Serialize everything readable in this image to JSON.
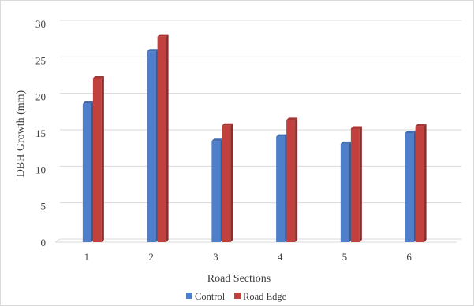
{
  "chart_data": {
    "type": "bar",
    "categories": [
      "1",
      "2",
      "3",
      "4",
      "5",
      "6"
    ],
    "series": [
      {
        "name": "Control",
        "values": [
          19,
          26.2,
          13.9,
          14.5,
          13.5,
          15
        ],
        "color": "#4f7fcb"
      },
      {
        "name": "Road Edge",
        "values": [
          22.5,
          28.2,
          16,
          16.8,
          15.6,
          15.9
        ],
        "color": "#c0413e"
      }
    ],
    "xlabel": "Road Sections",
    "ylabel": "DBH Growth (mm)",
    "ylim": [
      0,
      30
    ],
    "yticks": [
      "0",
      "5",
      "10",
      "15",
      "20",
      "25",
      "30"
    ],
    "grid": true,
    "legend_position": "bottom-center"
  }
}
